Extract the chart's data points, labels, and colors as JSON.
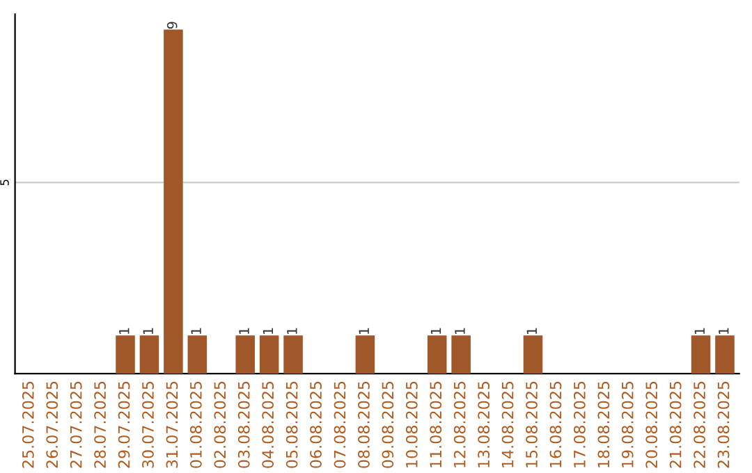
{
  "chart_data": {
    "type": "bar",
    "categories": [
      "25.07.2025",
      "26.07.2025",
      "27.07.2025",
      "28.07.2025",
      "29.07.2025",
      "30.07.2025",
      "31.07.2025",
      "01.08.2025",
      "02.08.2025",
      "03.08.2025",
      "04.08.2025",
      "05.08.2025",
      "06.08.2025",
      "07.08.2025",
      "08.08.2025",
      "09.08.2025",
      "10.08.2025",
      "11.08.2025",
      "12.08.2025",
      "13.08.2025",
      "14.08.2025",
      "15.08.2025",
      "16.08.2025",
      "17.08.2025",
      "18.08.2025",
      "19.08.2025",
      "20.08.2025",
      "21.08.2025",
      "22.08.2025",
      "23.08.2025"
    ],
    "values": [
      0,
      0,
      0,
      0,
      1,
      1,
      9,
      1,
      0,
      1,
      1,
      1,
      0,
      0,
      1,
      0,
      0,
      1,
      1,
      0,
      0,
      1,
      0,
      0,
      0,
      0,
      0,
      0,
      1,
      1
    ],
    "value_labels": [
      null,
      null,
      null,
      null,
      "1",
      "1",
      "9",
      "1",
      null,
      "1",
      "1",
      "1",
      null,
      null,
      "1",
      null,
      null,
      "1",
      "1",
      null,
      null,
      "1",
      null,
      null,
      null,
      null,
      null,
      null,
      "1",
      "1"
    ],
    "color": "#a0582a",
    "ylim": [
      0,
      9.4
    ],
    "yticks": [
      5
    ],
    "grid": "y"
  }
}
